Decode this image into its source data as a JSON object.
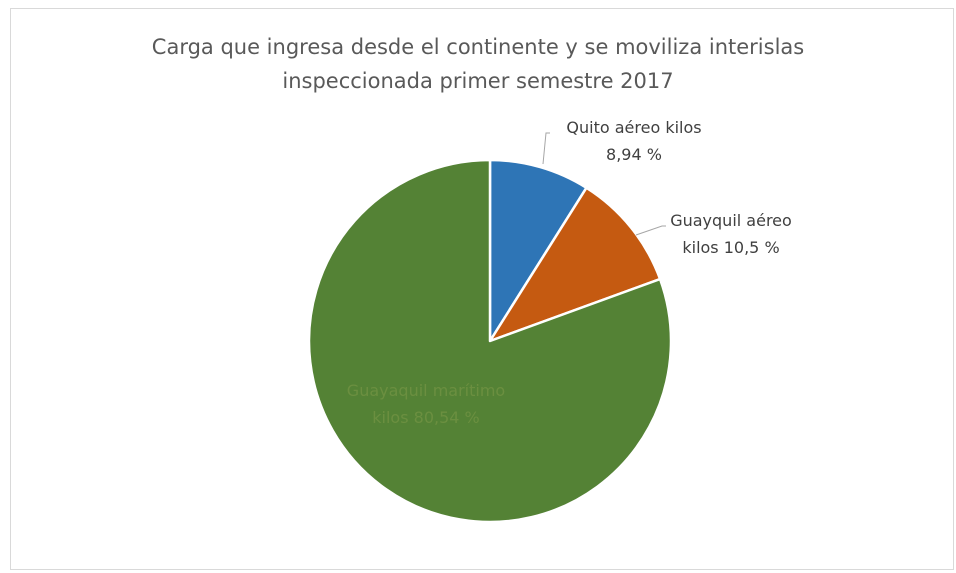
{
  "chart_data": {
    "type": "pie",
    "title_lines": [
      "Carga que ingresa desde el continente y se moviliza interislas",
      "inspeccionada primer semestre 2017"
    ],
    "slices": [
      {
        "name": "Quito aéreo kilos",
        "value": 8.94,
        "label_lines": [
          "Quito aéreo kilos",
          "8,94 %"
        ],
        "color": "#2e75b6"
      },
      {
        "name": "Guayquil aéreo kilos",
        "value": 10.5,
        "label_lines": [
          "Guayquil aéreo",
          "kilos 10,5 %"
        ],
        "color": "#c55a11"
      },
      {
        "name": "Guayaquil marítimo kilos",
        "value": 80.54,
        "label_lines": [
          "Guayaquil marítimo",
          "kilos 80,54 %"
        ],
        "color": "#548235"
      }
    ],
    "legend": "none",
    "start_angle_deg": 0,
    "direction": "clockwise"
  }
}
